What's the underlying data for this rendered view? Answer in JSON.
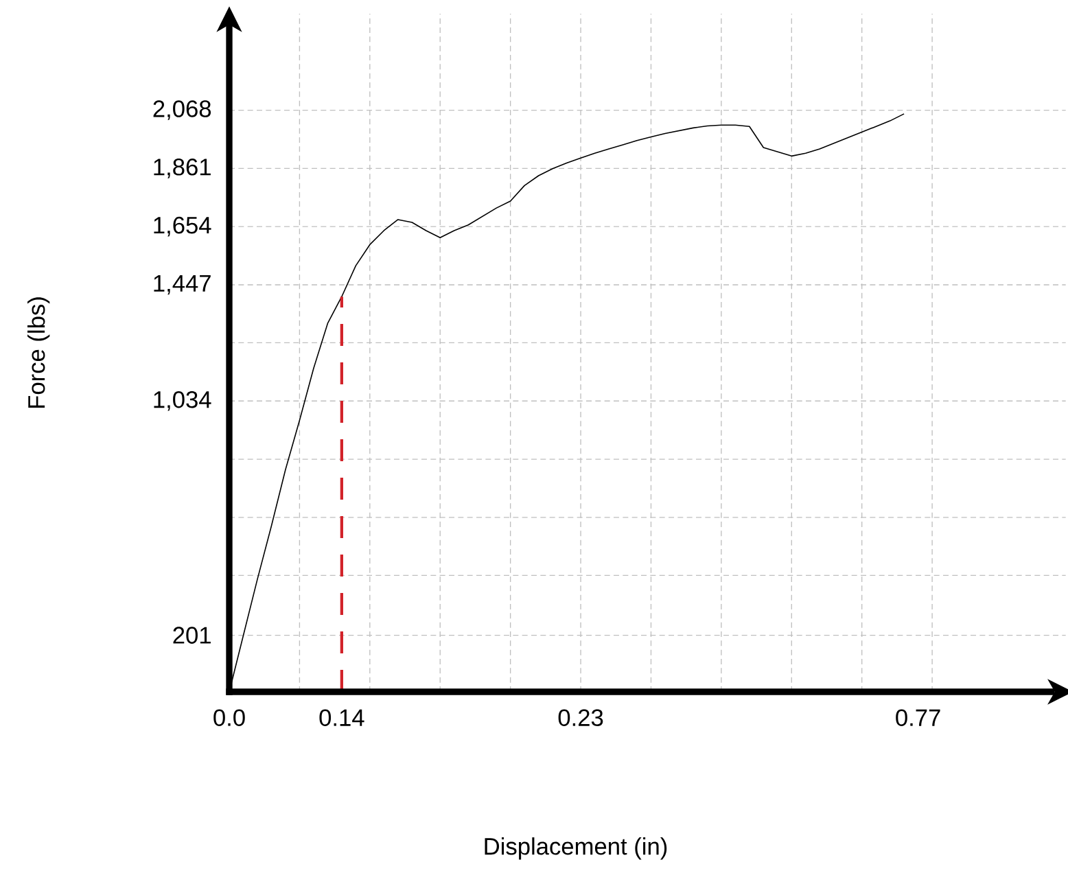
{
  "chart_data": {
    "type": "line",
    "xlabel": "Displacement (in)",
    "ylabel": "Force (lbs)",
    "categories": [
      "0.0",
      null,
      null,
      null,
      null,
      null,
      null,
      null,
      "0.14",
      null,
      null,
      null,
      null,
      null,
      null,
      null,
      null,
      null,
      null,
      null,
      null,
      null,
      null,
      null,
      null,
      "0.23",
      null,
      null,
      null,
      null,
      null,
      null,
      null,
      null,
      null,
      null,
      null,
      null,
      null,
      null,
      null,
      null,
      null,
      null,
      null,
      null,
      null,
      null,
      null,
      "0.77",
      null,
      null,
      null,
      null,
      null,
      null,
      null,
      null,
      null,
      null
    ],
    "ylim": [
      0,
      2411
    ],
    "yticks": [
      201,
      {
        "value": 1034,
        "label": "1,034"
      },
      {
        "value": 1447,
        "label": "1,447"
      },
      {
        "value": 1654,
        "label": "1,654"
      },
      {
        "value": 1861,
        "label": "1,861"
      },
      {
        "value": 2068,
        "label": "2,068"
      },
      {
        "value": 414,
        "label": null
      },
      {
        "value": 620,
        "label": null
      },
      {
        "value": 827,
        "label": null
      },
      {
        "value": 1241,
        "label": null
      }
    ],
    "grid": true,
    "ref_lines": [
      {
        "axis": "x",
        "value": "0.14",
        "color": "#d2232a",
        "line_style": "dashed"
      }
    ],
    "series": [
      {
        "color": "#000000",
        "values": [
          0,
          200,
          400,
          590,
          790,
          965,
          1150,
          1310,
          1405,
          1515,
          1590,
          1640,
          1679,
          1669,
          1640,
          1615,
          1640,
          1660,
          1690,
          1720,
          1745,
          1800,
          1835,
          1860,
          1880,
          1898,
          1915,
          1930,
          1945,
          1960,
          1973,
          1985,
          1995,
          2005,
          2012,
          2015,
          2015,
          2010,
          1935,
          1920,
          1905,
          1915,
          1930,
          1950,
          1970,
          1990,
          2010,
          2030,
          2055,
          null,
          null,
          null,
          null,
          null,
          null,
          null,
          null,
          null,
          null,
          null
        ]
      }
    ]
  }
}
